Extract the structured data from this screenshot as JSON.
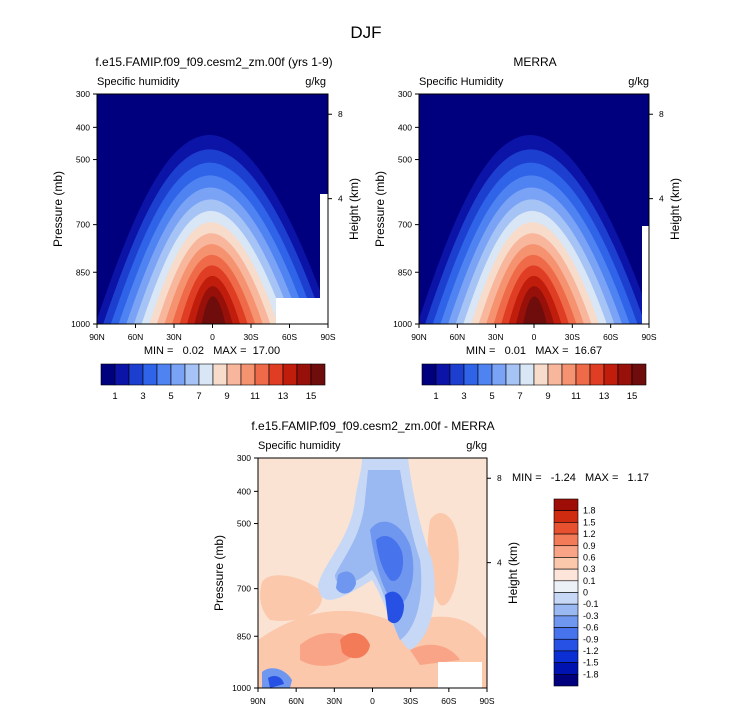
{
  "figure": {
    "title": "DJF"
  },
  "panels": [
    {
      "title": "f.e15.FAMIP.f09_f09.cesm2_zm.00f (yrs 1-9)",
      "field_label": "Specific humidity",
      "units": "g/kg",
      "stats": "MIN =   0.02   MAX =  17.00"
    },
    {
      "title": "MERRA",
      "field_label": "Specific Humidity",
      "units": "g/kg",
      "stats": "MIN =   0.01   MAX =  16.67"
    },
    {
      "title": "f.e15.FAMIP.f09_f09.cesm2_zm.00f - MERRA",
      "field_label": "Specific humidity",
      "units": "g/kg",
      "stats": "MIN =   -1.24   MAX =   1.17"
    }
  ],
  "chart_data": [
    {
      "type": "heatmap",
      "title": "f.e15.FAMIP.f09_f09.cesm2_zm.00f (yrs 1-9)",
      "subtitle": "Specific humidity",
      "units": "g/kg",
      "xlabel": "",
      "ylabel": "Pressure (mb)",
      "y2label": "Height (km)",
      "x_ticks": [
        "90N",
        "60N",
        "30N",
        "0",
        "30S",
        "60S",
        "90S"
      ],
      "y_ticks": [
        "300",
        "400",
        "500",
        "700",
        "850",
        "1000"
      ],
      "y2_ticks": [
        "8",
        "4"
      ],
      "min": 0.02,
      "max": 17.0,
      "peak": {
        "lat": 0,
        "pressure": 1000,
        "value": 17.0
      },
      "colorbar_labels": [
        "1",
        "3",
        "5",
        "7",
        "9",
        "11",
        "13",
        "15"
      ]
    },
    {
      "type": "heatmap",
      "title": "MERRA",
      "subtitle": "Specific Humidity",
      "units": "g/kg",
      "xlabel": "",
      "ylabel": "Pressure (mb)",
      "y2label": "Height (km)",
      "x_ticks": [
        "90N",
        "60N",
        "30N",
        "0",
        "30S",
        "60S",
        "90S"
      ],
      "y_ticks": [
        "300",
        "400",
        "500",
        "700",
        "850",
        "1000"
      ],
      "y2_ticks": [
        "8",
        "4"
      ],
      "min": 0.01,
      "max": 16.67,
      "peak": {
        "lat": 0,
        "pressure": 1000,
        "value": 16.67
      },
      "colorbar_labels": [
        "1",
        "3",
        "5",
        "7",
        "9",
        "11",
        "13",
        "15"
      ]
    },
    {
      "type": "heatmap",
      "title": "f.e15.FAMIP.f09_f09.cesm2_zm.00f - MERRA",
      "subtitle": "Specific humidity",
      "units": "g/kg",
      "xlabel": "",
      "ylabel": "Pressure (mb)",
      "y2label": "Height (km)",
      "x_ticks": [
        "90N",
        "60N",
        "30N",
        "0",
        "30S",
        "60S",
        "90S"
      ],
      "y_ticks": [
        "300",
        "400",
        "500",
        "700",
        "850",
        "1000"
      ],
      "y2_ticks": [
        "8",
        "4"
      ],
      "min": -1.24,
      "max": 1.17,
      "colorbar_labels": [
        "1.8",
        "1.5",
        "1.2",
        "0.9",
        "0.6",
        "0.3",
        "0.1",
        "0",
        "-0.1",
        "-0.3",
        "-0.6",
        "-0.9",
        "-1.2",
        "-1.5",
        "-1.8"
      ]
    }
  ],
  "colors": {
    "abs_scale": [
      "#00007f",
      "#0b14a6",
      "#1d3fd0",
      "#2f63e8",
      "#4f83f2",
      "#7aa3f5",
      "#a6c3f6",
      "#d8e6f6",
      "#f8dccb",
      "#f8b79c",
      "#f5926f",
      "#ee6a48",
      "#e03e24",
      "#c01d0c",
      "#97100a",
      "#6e0d0b"
    ],
    "diff_scale": [
      "#00007f",
      "#0012b0",
      "#0c2fd4",
      "#2651e4",
      "#4774ec",
      "#7097ef",
      "#9ab8f1",
      "#c6d8f5",
      "#ecf1f8",
      "#fde6d9",
      "#fbc8ac",
      "#f9a486",
      "#f47b58",
      "#e8512f",
      "#cf2b10",
      "#9e0e07"
    ]
  }
}
